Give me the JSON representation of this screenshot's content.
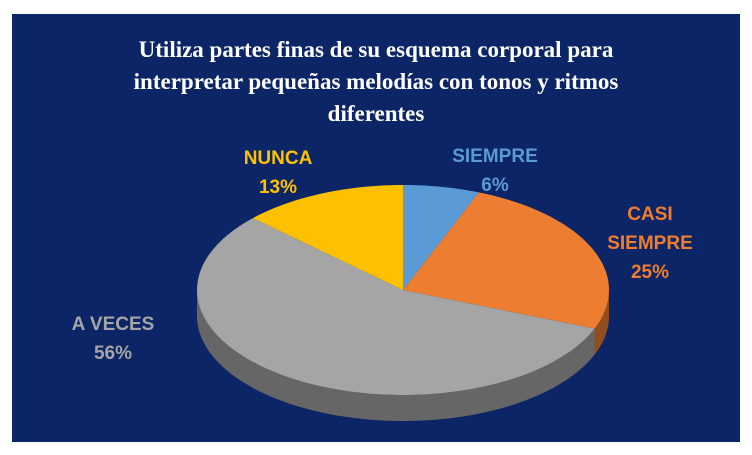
{
  "chart_data": {
    "type": "pie3d",
    "title": "Utiliza partes finas de su esquema corporal para interpretar pequeñas melodías con tonos y ritmos diferentes",
    "categories": [
      "SIEMPRE",
      "CASI SIEMPRE",
      "A VECES",
      "NUNCA"
    ],
    "values": [
      6,
      25,
      56,
      13
    ],
    "value_labels": [
      "6%",
      "25%",
      "56%",
      "13%"
    ],
    "colors": [
      "#5b9bd5",
      "#ed7d31",
      "#a5a5a5",
      "#ffc000"
    ]
  }
}
